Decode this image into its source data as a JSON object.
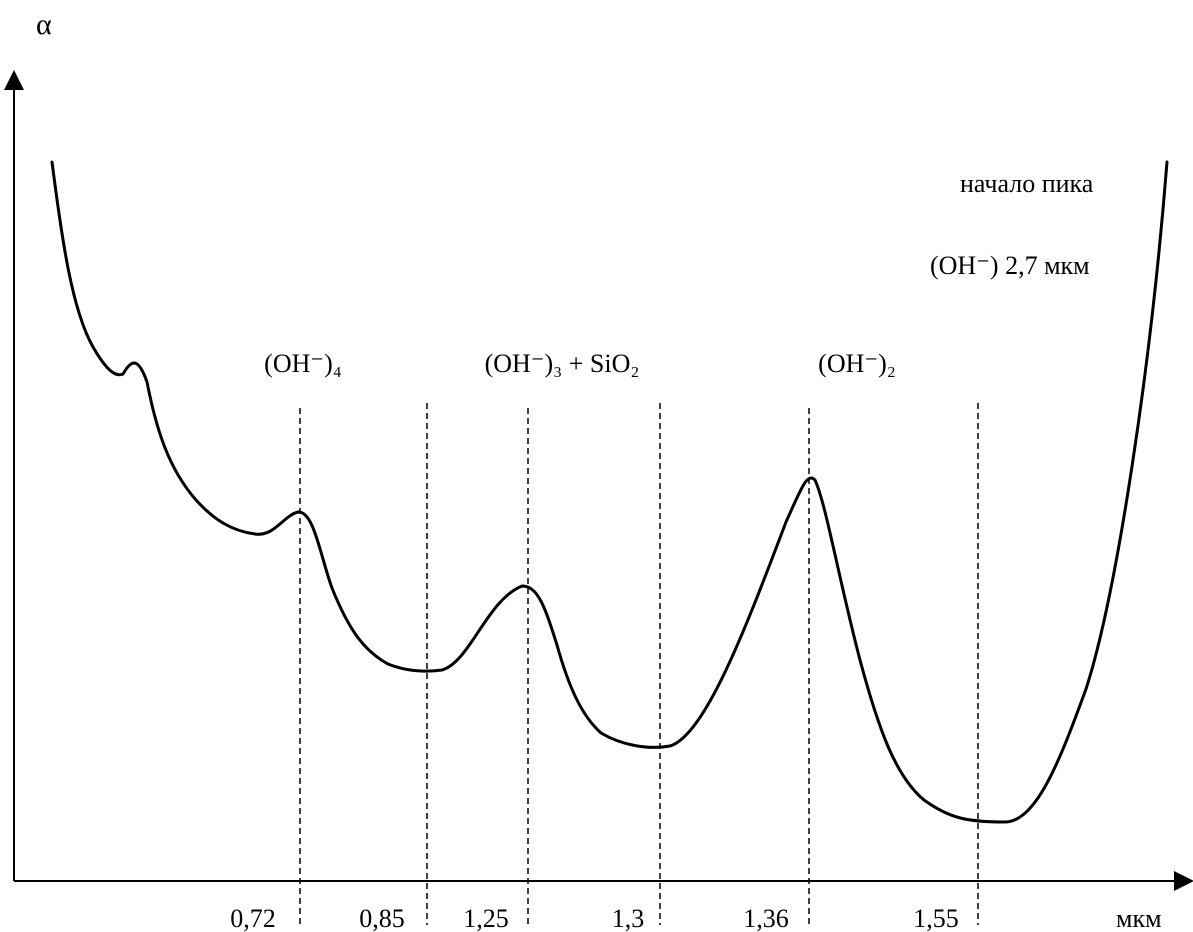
{
  "chart_data": {
    "type": "line",
    "ylabel": "α",
    "xlabel": "мкм",
    "x_ticks": [
      "0,72",
      "0,85",
      "1,25",
      "1,3",
      "1,36",
      "1,55"
    ],
    "annotations": [
      {
        "text": "(OH⁻)₄",
        "x_tick": "0,72"
      },
      {
        "text": "(OH⁻)₃ + SiO₂",
        "x_tick": "1,25"
      },
      {
        "text": "(OH⁻)₂",
        "x_tick": "1,36"
      }
    ],
    "note_line1": "начало пика",
    "note_line2": "(OH⁻) 2,7 мкм",
    "grid": false,
    "legend": false,
    "y_ticks": []
  }
}
